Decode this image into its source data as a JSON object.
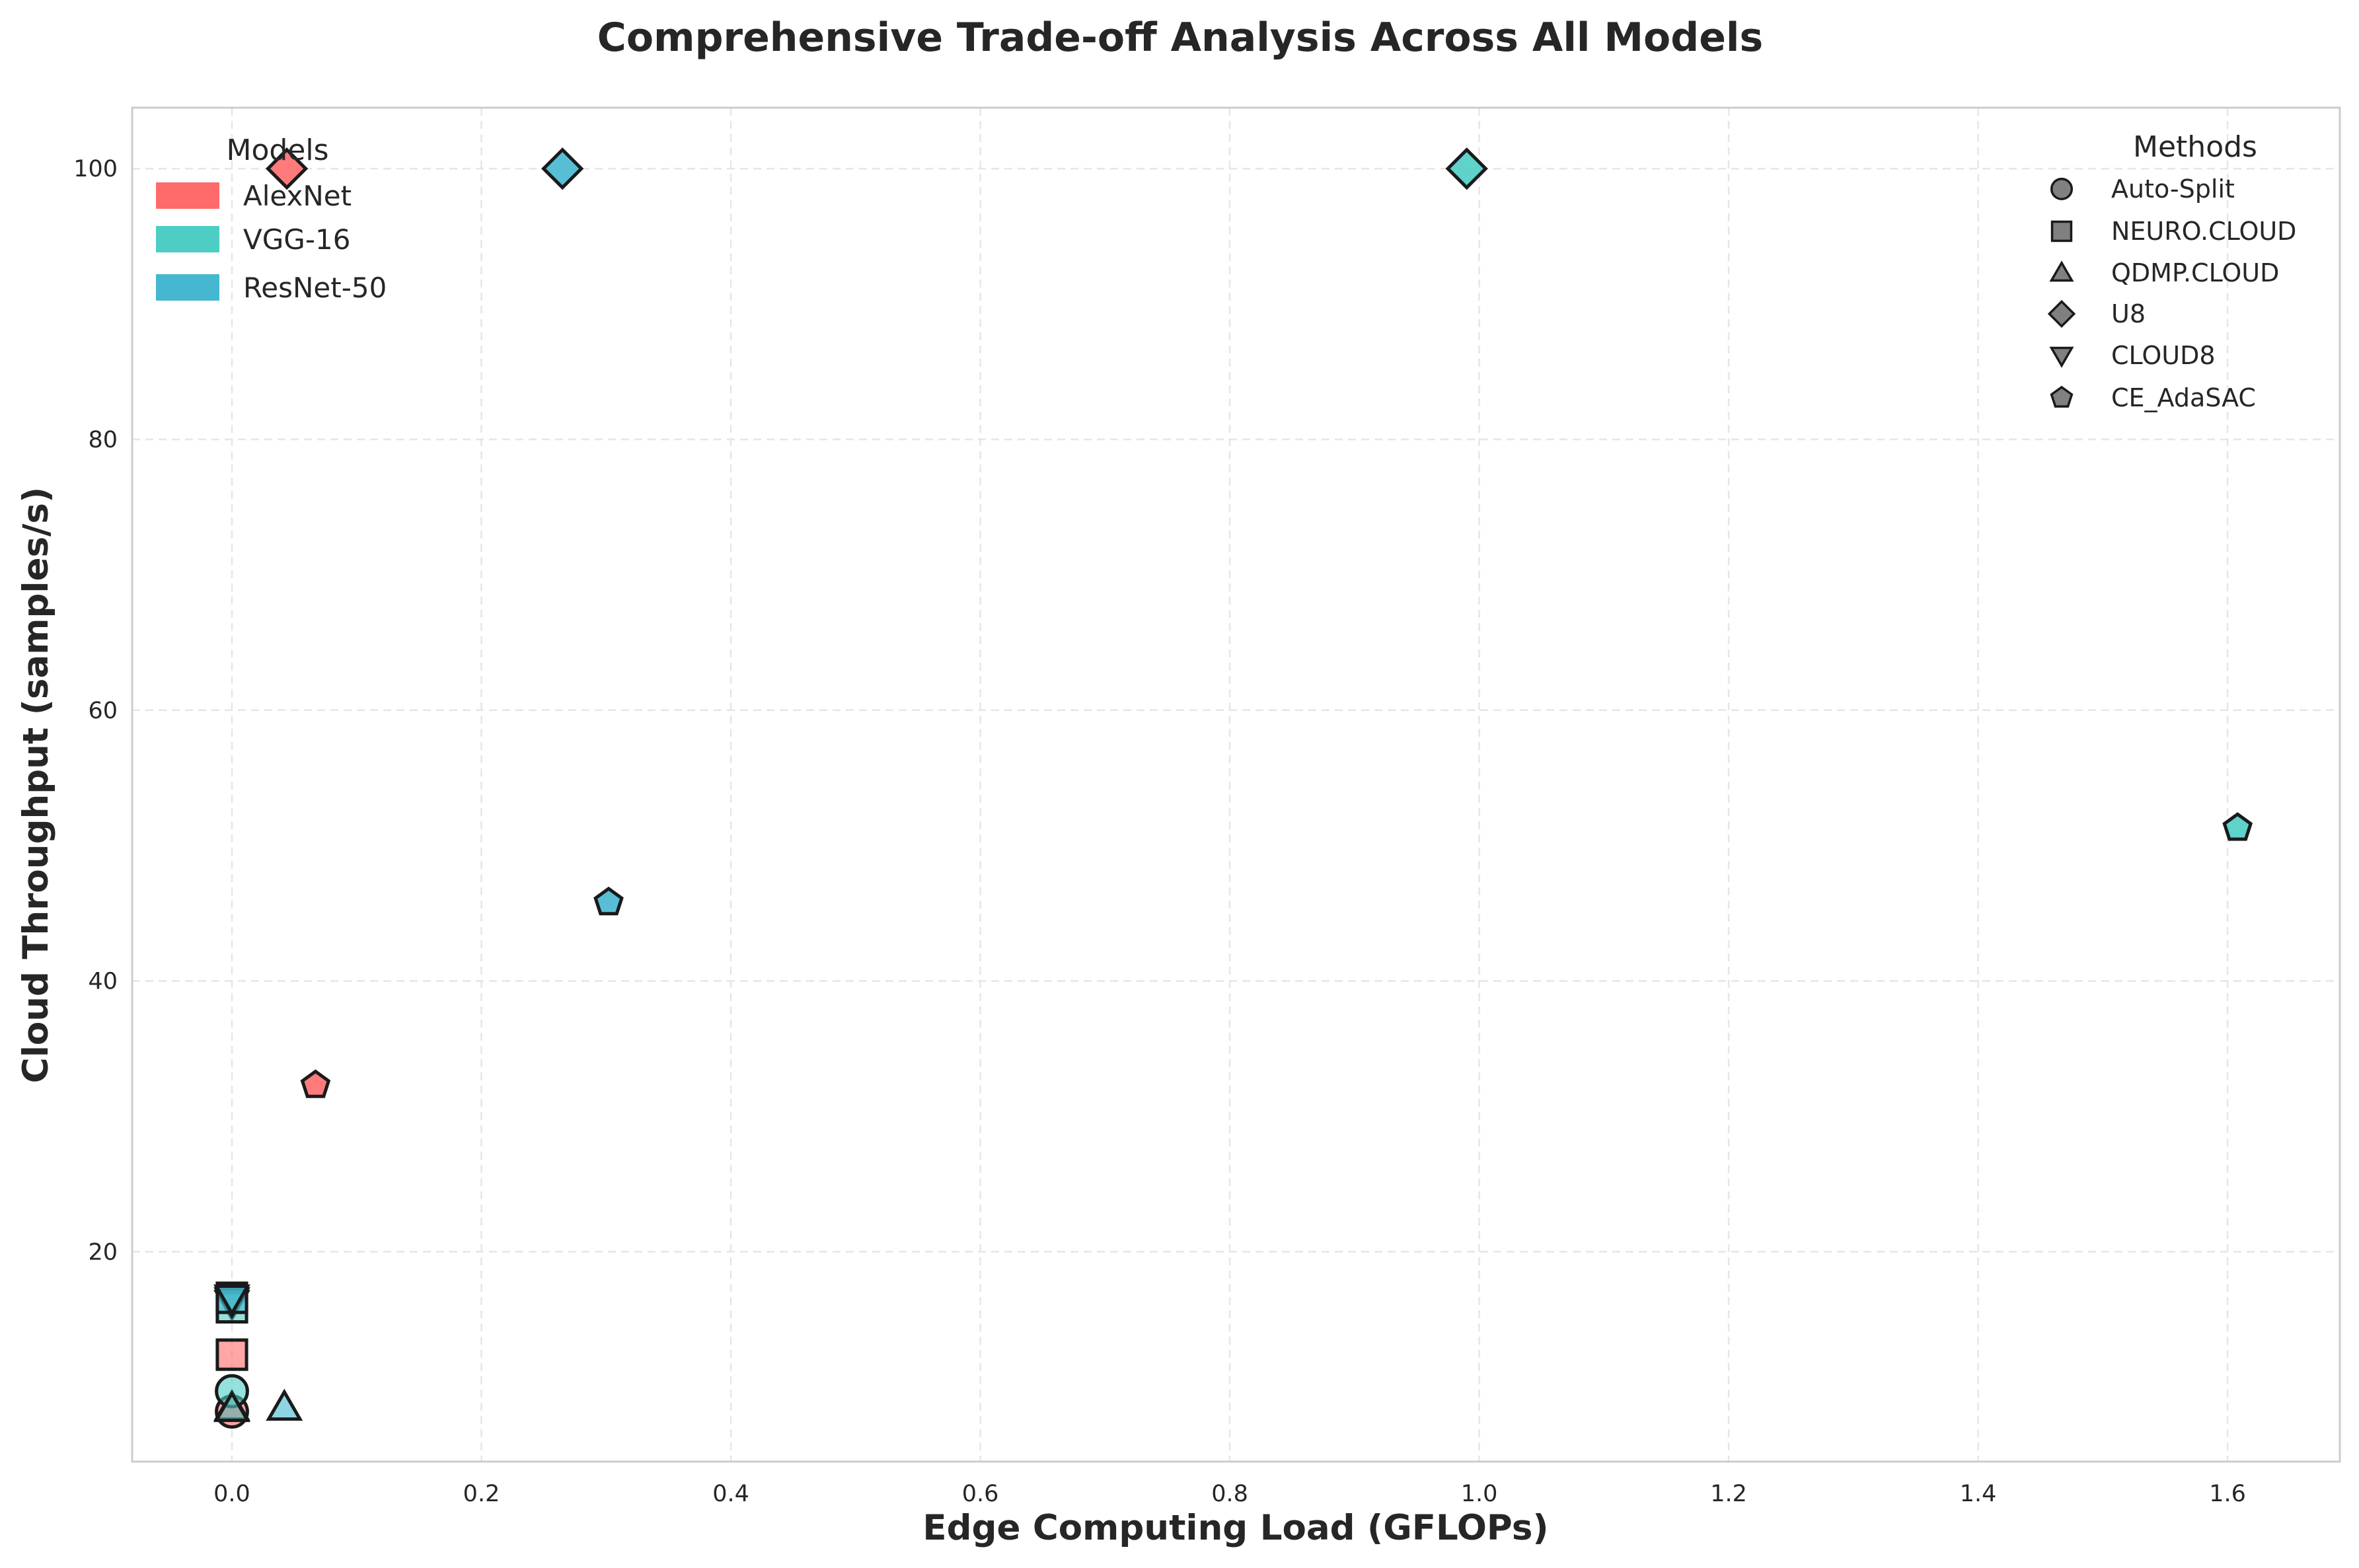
{
  "chart_data": {
    "type": "scatter",
    "title": "Comprehensive Trade-off Analysis Across All Models",
    "xlabel": "Edge Computing Load (GFLOPs)",
    "ylabel": "Cloud Throughput (samples/s)",
    "xlim": [
      -0.08,
      1.69
    ],
    "ylim": [
      4.5,
      104.5
    ],
    "xticks": [
      0.0,
      0.2,
      0.4,
      0.6,
      0.8,
      1.0,
      1.2,
      1.4,
      1.6
    ],
    "xtick_labels": [
      "0.0",
      "0.2",
      "0.4",
      "0.6",
      "0.8",
      "1.0",
      "1.2",
      "1.4",
      "1.6"
    ],
    "yticks": [
      20,
      40,
      60,
      80,
      100
    ],
    "ytick_labels": [
      "20",
      "40",
      "60",
      "80",
      "100"
    ],
    "grid": true,
    "models_legend": {
      "title": "Models",
      "position": "top-left",
      "entries": [
        {
          "name": "AlexNet",
          "color": "#FF6B6B"
        },
        {
          "name": "VGG-16",
          "color": "#4ECDC4"
        },
        {
          "name": "ResNet-50",
          "color": "#45B7D1"
        }
      ]
    },
    "methods_legend": {
      "title": "Methods",
      "position": "top-right",
      "entries": [
        {
          "name": "Auto-Split",
          "marker": "circle"
        },
        {
          "name": "NEURO.CLOUD",
          "marker": "square"
        },
        {
          "name": "QDMP.CLOUD",
          "marker": "triangle-up"
        },
        {
          "name": "U8",
          "marker": "diamond"
        },
        {
          "name": "CLOUD8",
          "marker": "triangle-down"
        },
        {
          "name": "CE_AdaSAC",
          "marker": "pentagon"
        }
      ]
    },
    "points": [
      {
        "model": "AlexNet",
        "method": "Auto-Split",
        "x": 0.0,
        "y": 8.2
      },
      {
        "model": "AlexNet",
        "method": "NEURO.CLOUD",
        "x": 0.0,
        "y": 12.4
      },
      {
        "model": "AlexNet",
        "method": "QDMP.CLOUD",
        "x": 0.0,
        "y": 8.5
      },
      {
        "model": "AlexNet",
        "method": "U8",
        "x": 0.044,
        "y": 100.0
      },
      {
        "model": "AlexNet",
        "method": "CLOUD8",
        "x": 0.0,
        "y": 16.2
      },
      {
        "model": "AlexNet",
        "method": "CE_AdaSAC",
        "x": 0.067,
        "y": 32.3
      },
      {
        "model": "VGG-16",
        "method": "Auto-Split",
        "x": 0.0,
        "y": 9.7
      },
      {
        "model": "VGG-16",
        "method": "NEURO.CLOUD",
        "x": 0.0,
        "y": 15.9
      },
      {
        "model": "VGG-16",
        "method": "QDMP.CLOUD",
        "x": 0.0,
        "y": 8.4
      },
      {
        "model": "VGG-16",
        "method": "U8",
        "x": 0.99,
        "y": 100.0
      },
      {
        "model": "VGG-16",
        "method": "CLOUD8",
        "x": 0.0,
        "y": 16.4
      },
      {
        "model": "VGG-16",
        "method": "CE_AdaSAC",
        "x": 1.608,
        "y": 51.3
      },
      {
        "model": "ResNet-50",
        "method": "NEURO.CLOUD",
        "x": 0.0,
        "y": 16.6
      },
      {
        "model": "ResNet-50",
        "method": "QDMP.CLOUD",
        "x": 0.042,
        "y": 8.5
      },
      {
        "model": "ResNet-50",
        "method": "U8",
        "x": 0.265,
        "y": 100.0
      },
      {
        "model": "ResNet-50",
        "method": "CLOUD8",
        "x": 0.0,
        "y": 16.6
      },
      {
        "model": "ResNet-50",
        "method": "CE_AdaSAC",
        "x": 0.302,
        "y": 45.8
      }
    ]
  }
}
